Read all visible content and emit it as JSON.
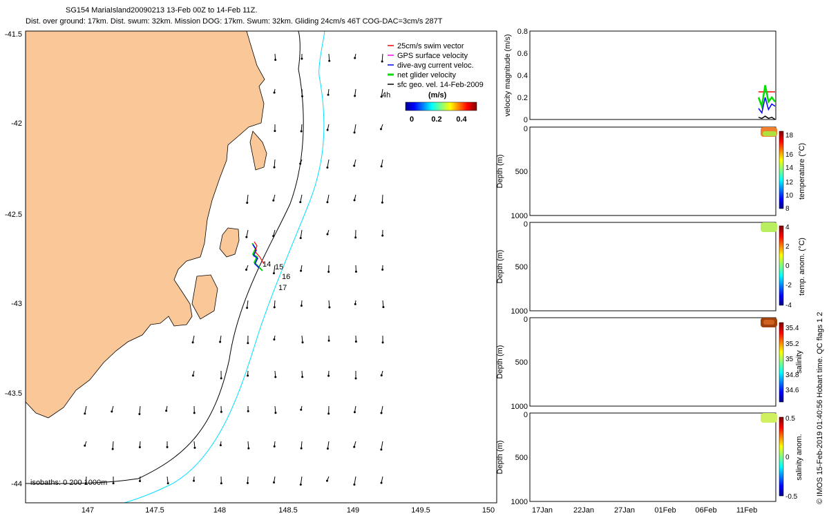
{
  "header": {
    "title": "SG154 MariaIsland20090213 13-Feb 00Z to 14-Feb 11Z.",
    "subtitle": "Dist. over ground: 17km. Dist. swum: 32km. Mission DOG: 17km. Swum: 32km. Gliding 24cm/s 46T COG-DAC=3cm/s 287T"
  },
  "side_caption": "© IMOS 15-Feb-2019 01:40:56 Hobart time. QC flags 1  2",
  "map": {
    "lat_ticks": [
      "-41.5",
      "-42",
      "-42.5",
      "-43",
      "-43.5",
      "-44"
    ],
    "lon_ticks": [
      "147",
      "147.5",
      "148",
      "148.5",
      "149",
      "149.5",
      "150"
    ],
    "legend": [
      {
        "label": "25cm/s swim vector",
        "color": "#ff0000"
      },
      {
        "label": "GPS surface velocity",
        "color": "#ff00ff"
      },
      {
        "label": "dive-avg current veloc.",
        "color": "#0000ff"
      },
      {
        "label": "net glider velocity",
        "color": "#00dd00"
      },
      {
        "label": "sfc geo. vel. 14-Feb-2009",
        "color": "#000000"
      }
    ],
    "legend_4h": "4h",
    "colorbar": {
      "unit": "(m/s)",
      "ticks": [
        "0",
        "0.2",
        "0.4"
      ]
    },
    "day_labels": [
      "14",
      "15",
      "16",
      "17"
    ],
    "isobaths_label": "isobaths: 0   200  1000m",
    "land_color": "#fac898",
    "isobath_colors": {
      "200m": "#000000",
      "1000m": "#00e0ff"
    }
  },
  "panels": [
    {
      "ylabel": "velocity magnitude (m/s)",
      "yticks": [
        "0.8",
        "0.6",
        "0.4",
        "0.2",
        "0"
      ],
      "cbar_label": "",
      "cbar_ticks": []
    },
    {
      "ylabel": "Depth (m)",
      "yticks": [
        "0",
        "500",
        "1000"
      ],
      "cbar_label": "temperature (°C)",
      "cbar_ticks": [
        "18",
        "16",
        "14",
        "12",
        "10",
        "8"
      ]
    },
    {
      "ylabel": "Depth (m)",
      "yticks": [
        "0",
        "500",
        "1000"
      ],
      "cbar_label": "temp. anom. (°C)",
      "cbar_ticks": [
        "4",
        "2",
        "0",
        "-2",
        "-4"
      ]
    },
    {
      "ylabel": "Depth (m)",
      "yticks": [
        "0",
        "500",
        "1000"
      ],
      "cbar_label": "salinity",
      "cbar_ticks": [
        "35.4",
        "35.2",
        "35",
        "34.8",
        "34.6"
      ]
    },
    {
      "ylabel": "Depth (m)",
      "yticks": [
        "0",
        "500",
        "1000"
      ],
      "cbar_label": "salinity anom.",
      "cbar_ticks": [
        "0.5",
        "0",
        "-0.5"
      ]
    }
  ],
  "time_ticks": [
    "17Jan",
    "22Jan",
    "27Jan",
    "01Feb",
    "06Feb",
    "11Feb"
  ],
  "chart_data": {
    "type": "line",
    "title": "SG154 MariaIsland20090213 13-Feb 00Z to 14-Feb 11Z.",
    "series": [
      {
        "name": "25cm/s swim vector",
        "x": [
          0,
          1,
          2,
          3,
          4,
          5
        ],
        "values": [
          0.25,
          0.25,
          0.25,
          0.25,
          0.25,
          0.25
        ],
        "color": "#ff0000"
      },
      {
        "name": "net glider velocity",
        "x": [
          0,
          1,
          2,
          3,
          4,
          5
        ],
        "values": [
          0.2,
          0.12,
          0.31,
          0.16,
          0.2,
          0.16
        ],
        "color": "#00dd00"
      },
      {
        "name": "dive-avg current veloc.",
        "x": [
          0,
          1,
          2,
          3,
          4,
          5
        ],
        "values": [
          0.1,
          0.06,
          0.2,
          0.09,
          0.14,
          0.12
        ],
        "color": "#0000ff"
      },
      {
        "name": "sfc geo. vel. 14-Feb-2009",
        "x": [
          0,
          1,
          2,
          3,
          4,
          5
        ],
        "values": [
          0.02,
          0.01,
          0.03,
          0.01,
          0.02,
          0.0
        ],
        "color": "#000000"
      }
    ],
    "ylim": [
      0,
      0.8
    ],
    "ylabel": "velocity magnitude (m/s)"
  }
}
